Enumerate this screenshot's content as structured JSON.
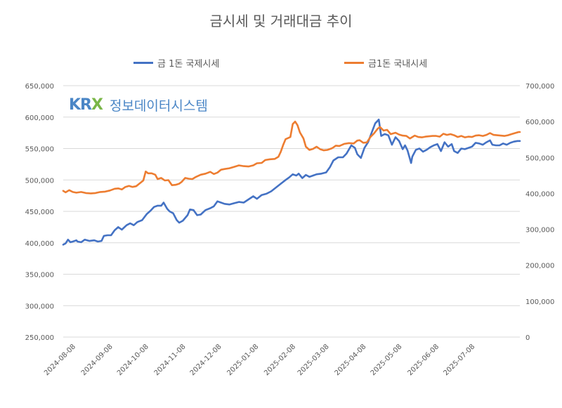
{
  "chart_data": {
    "type": "line",
    "title": "금시세 및 거래대금 추이",
    "watermark": {
      "logo": "KRX",
      "text": "정보데이터시스템",
      "logo_color": "#4a86c6",
      "accent_color": "#7ab648"
    },
    "left_axis": {
      "ylim": [
        250000,
        650000
      ],
      "ticks": [
        "250,000",
        "300,000",
        "350,000",
        "400,000",
        "450,000",
        "500,000",
        "550,000",
        "600,000",
        "650,000"
      ]
    },
    "right_axis": {
      "ylim": [
        0,
        700000
      ],
      "ticks": [
        "0",
        "100,000",
        "200,000",
        "300,000",
        "400,000",
        "500,000",
        "600,000",
        "700,000"
      ]
    },
    "x_axis": {
      "type": "date",
      "range": [
        "2024-08-01",
        "2025-08-18"
      ],
      "ticks": [
        "2024-08-08",
        "2024-09-08",
        "2024-10-08",
        "2024-11-08",
        "2024-12-08",
        "2025-01-08",
        "2025-02-08",
        "2025-03-08",
        "2025-04-08",
        "2025-05-08",
        "2025-06-08",
        "2025-07-08"
      ]
    },
    "gridlines": true,
    "legend_position": "top",
    "series": [
      {
        "name": "금 1돈 국제시세",
        "axis": "left",
        "color": "#4472c4",
        "points": [
          [
            "2024-08-01",
            397000
          ],
          [
            "2024-08-03",
            399000
          ],
          [
            "2024-08-05",
            405000
          ],
          [
            "2024-08-07",
            401000
          ],
          [
            "2024-08-09",
            402000
          ],
          [
            "2024-08-12",
            404000
          ],
          [
            "2024-08-13",
            402000
          ],
          [
            "2024-08-16",
            401000
          ],
          [
            "2024-08-19",
            405000
          ],
          [
            "2024-08-23",
            403000
          ],
          [
            "2024-08-27",
            404000
          ],
          [
            "2024-08-30",
            402000
          ],
          [
            "2024-09-02",
            403000
          ],
          [
            "2024-09-04",
            411000
          ],
          [
            "2024-09-07",
            412000
          ],
          [
            "2024-09-10",
            412000
          ],
          [
            "2024-09-13",
            420000
          ],
          [
            "2024-09-16",
            425000
          ],
          [
            "2024-09-19",
            421000
          ],
          [
            "2024-09-23",
            428000
          ],
          [
            "2024-09-26",
            431000
          ],
          [
            "2024-09-29",
            428000
          ],
          [
            "2024-10-02",
            433000
          ],
          [
            "2024-10-06",
            436000
          ],
          [
            "2024-10-10",
            446000
          ],
          [
            "2024-10-13",
            451000
          ],
          [
            "2024-10-16",
            457000
          ],
          [
            "2024-10-19",
            459000
          ],
          [
            "2024-10-22",
            459000
          ],
          [
            "2024-10-24",
            464000
          ],
          [
            "2024-10-27",
            454000
          ],
          [
            "2024-10-29",
            450000
          ],
          [
            "2024-11-01",
            447000
          ],
          [
            "2024-11-04",
            436000
          ],
          [
            "2024-11-06",
            432000
          ],
          [
            "2024-11-09",
            435000
          ],
          [
            "2024-11-13",
            444000
          ],
          [
            "2024-11-15",
            453000
          ],
          [
            "2024-11-18",
            452000
          ],
          [
            "2024-11-21",
            444000
          ],
          [
            "2024-11-24",
            445000
          ],
          [
            "2024-11-28",
            452000
          ],
          [
            "2024-12-02",
            455000
          ],
          [
            "2024-12-05",
            458000
          ],
          [
            "2024-12-08",
            466000
          ],
          [
            "2024-12-11",
            464000
          ],
          [
            "2024-12-14",
            462000
          ],
          [
            "2024-12-18",
            461000
          ],
          [
            "2024-12-22",
            463000
          ],
          [
            "2024-12-26",
            465000
          ],
          [
            "2024-12-30",
            464000
          ],
          [
            "2025-01-03",
            469000
          ],
          [
            "2025-01-07",
            474000
          ],
          [
            "2025-01-10",
            470000
          ],
          [
            "2025-01-14",
            476000
          ],
          [
            "2025-01-18",
            478000
          ],
          [
            "2025-01-22",
            482000
          ],
          [
            "2025-01-26",
            488000
          ],
          [
            "2025-01-30",
            494000
          ],
          [
            "2025-02-03",
            500000
          ],
          [
            "2025-02-06",
            504000
          ],
          [
            "2025-02-09",
            509000
          ],
          [
            "2025-02-12",
            507000
          ],
          [
            "2025-02-14",
            510000
          ],
          [
            "2025-02-17",
            503000
          ],
          [
            "2025-02-20",
            508000
          ],
          [
            "2025-02-23",
            505000
          ],
          [
            "2025-02-26",
            507000
          ],
          [
            "2025-03-01",
            509000
          ],
          [
            "2025-03-05",
            510000
          ],
          [
            "2025-03-09",
            512000
          ],
          [
            "2025-03-12",
            520000
          ],
          [
            "2025-03-15",
            531000
          ],
          [
            "2025-03-19",
            536000
          ],
          [
            "2025-03-23",
            536000
          ],
          [
            "2025-03-26",
            542000
          ],
          [
            "2025-03-30",
            555000
          ],
          [
            "2025-04-02",
            551000
          ],
          [
            "2025-04-04",
            541000
          ],
          [
            "2025-04-07",
            535000
          ],
          [
            "2025-04-10",
            551000
          ],
          [
            "2025-04-13",
            560000
          ],
          [
            "2025-04-16",
            575000
          ],
          [
            "2025-04-19",
            590000
          ],
          [
            "2025-04-22",
            596000
          ],
          [
            "2025-04-24",
            570000
          ],
          [
            "2025-04-27",
            573000
          ],
          [
            "2025-04-30",
            571000
          ],
          [
            "2025-05-03",
            556000
          ],
          [
            "2025-05-06",
            568000
          ],
          [
            "2025-05-09",
            562000
          ],
          [
            "2025-05-12",
            549000
          ],
          [
            "2025-05-14",
            555000
          ],
          [
            "2025-05-16",
            547000
          ],
          [
            "2025-05-19",
            527000
          ],
          [
            "2025-05-20",
            537000
          ],
          [
            "2025-05-23",
            548000
          ],
          [
            "2025-05-26",
            550000
          ],
          [
            "2025-05-29",
            545000
          ],
          [
            "2025-06-01",
            548000
          ],
          [
            "2025-06-04",
            552000
          ],
          [
            "2025-06-07",
            555000
          ],
          [
            "2025-06-10",
            557000
          ],
          [
            "2025-06-13",
            546000
          ],
          [
            "2025-06-16",
            560000
          ],
          [
            "2025-06-19",
            553000
          ],
          [
            "2025-06-22",
            557000
          ],
          [
            "2025-06-24",
            546000
          ],
          [
            "2025-06-27",
            543000
          ],
          [
            "2025-06-30",
            550000
          ],
          [
            "2025-07-03",
            549000
          ],
          [
            "2025-07-06",
            551000
          ],
          [
            "2025-07-09",
            553000
          ],
          [
            "2025-07-12",
            559000
          ],
          [
            "2025-07-15",
            558000
          ],
          [
            "2025-07-18",
            556000
          ],
          [
            "2025-07-21",
            560000
          ],
          [
            "2025-07-24",
            563000
          ],
          [
            "2025-07-26",
            556000
          ],
          [
            "2025-07-29",
            555000
          ],
          [
            "2025-08-01",
            555000
          ],
          [
            "2025-08-04",
            558000
          ],
          [
            "2025-08-07",
            556000
          ],
          [
            "2025-08-10",
            559000
          ],
          [
            "2025-08-13",
            561000
          ],
          [
            "2025-08-16",
            562000
          ],
          [
            "2025-08-18",
            562000
          ]
        ]
      },
      {
        "name": "금1돈 국내시세",
        "axis": "right",
        "color": "#ed7d31",
        "points": [
          [
            "2024-08-01",
            407000
          ],
          [
            "2024-08-03",
            403000
          ],
          [
            "2024-08-06",
            409000
          ],
          [
            "2024-08-09",
            404000
          ],
          [
            "2024-08-12",
            402000
          ],
          [
            "2024-08-16",
            404000
          ],
          [
            "2024-08-20",
            401000
          ],
          [
            "2024-08-24",
            400000
          ],
          [
            "2024-08-28",
            401000
          ],
          [
            "2024-09-01",
            404000
          ],
          [
            "2024-09-05",
            405000
          ],
          [
            "2024-09-09",
            408000
          ],
          [
            "2024-09-13",
            413000
          ],
          [
            "2024-09-16",
            414000
          ],
          [
            "2024-09-19",
            411000
          ],
          [
            "2024-09-22",
            418000
          ],
          [
            "2024-09-25",
            421000
          ],
          [
            "2024-09-28",
            418000
          ],
          [
            "2024-10-01",
            420000
          ],
          [
            "2024-10-04",
            428000
          ],
          [
            "2024-10-07",
            436000
          ],
          [
            "2024-10-09",
            461000
          ],
          [
            "2024-10-11",
            456000
          ],
          [
            "2024-10-14",
            456000
          ],
          [
            "2024-10-17",
            452000
          ],
          [
            "2024-10-19",
            440000
          ],
          [
            "2024-10-22",
            443000
          ],
          [
            "2024-10-25",
            436000
          ],
          [
            "2024-10-28",
            437000
          ],
          [
            "2024-10-31",
            423000
          ],
          [
            "2024-11-03",
            424000
          ],
          [
            "2024-11-06",
            427000
          ],
          [
            "2024-11-08",
            432000
          ],
          [
            "2024-11-11",
            443000
          ],
          [
            "2024-11-14",
            441000
          ],
          [
            "2024-11-17",
            440000
          ],
          [
            "2024-11-20",
            446000
          ],
          [
            "2024-11-24",
            452000
          ],
          [
            "2024-11-28",
            455000
          ],
          [
            "2024-12-02",
            460000
          ],
          [
            "2024-12-05",
            454000
          ],
          [
            "2024-12-08",
            458000
          ],
          [
            "2024-12-11",
            466000
          ],
          [
            "2024-12-14",
            468000
          ],
          [
            "2024-12-18",
            470000
          ],
          [
            "2024-12-22",
            474000
          ],
          [
            "2024-12-26",
            478000
          ],
          [
            "2024-12-30",
            476000
          ],
          [
            "2025-01-03",
            475000
          ],
          [
            "2025-01-07",
            478000
          ],
          [
            "2025-01-10",
            484000
          ],
          [
            "2025-01-14",
            485000
          ],
          [
            "2025-01-17",
            493000
          ],
          [
            "2025-01-21",
            495000
          ],
          [
            "2025-01-25",
            496000
          ],
          [
            "2025-01-28",
            502000
          ],
          [
            "2025-01-30",
            516000
          ],
          [
            "2025-02-01",
            535000
          ],
          [
            "2025-02-03",
            551000
          ],
          [
            "2025-02-05",
            554000
          ],
          [
            "2025-02-07",
            557000
          ],
          [
            "2025-02-09",
            593000
          ],
          [
            "2025-02-11",
            600000
          ],
          [
            "2025-02-13",
            590000
          ],
          [
            "2025-02-15",
            570000
          ],
          [
            "2025-02-18",
            553000
          ],
          [
            "2025-02-20",
            530000
          ],
          [
            "2025-02-23",
            521000
          ],
          [
            "2025-02-26",
            524000
          ],
          [
            "2025-03-01",
            530000
          ],
          [
            "2025-03-04",
            523000
          ],
          [
            "2025-03-07",
            520000
          ],
          [
            "2025-03-10",
            521000
          ],
          [
            "2025-03-14",
            526000
          ],
          [
            "2025-03-17",
            533000
          ],
          [
            "2025-03-20",
            532000
          ],
          [
            "2025-03-24",
            538000
          ],
          [
            "2025-03-28",
            540000
          ],
          [
            "2025-04-01",
            539000
          ],
          [
            "2025-04-04",
            547000
          ],
          [
            "2025-04-06",
            548000
          ],
          [
            "2025-04-09",
            541000
          ],
          [
            "2025-04-12",
            542000
          ],
          [
            "2025-04-15",
            557000
          ],
          [
            "2025-04-18",
            567000
          ],
          [
            "2025-04-21",
            580000
          ],
          [
            "2025-04-23",
            585000
          ],
          [
            "2025-04-26",
            575000
          ],
          [
            "2025-04-29",
            577000
          ],
          [
            "2025-05-02",
            565000
          ],
          [
            "2025-05-06",
            569000
          ],
          [
            "2025-05-09",
            564000
          ],
          [
            "2025-05-12",
            561000
          ],
          [
            "2025-05-15",
            560000
          ],
          [
            "2025-05-18",
            553000
          ],
          [
            "2025-05-22",
            561000
          ],
          [
            "2025-05-25",
            557000
          ],
          [
            "2025-05-28",
            556000
          ],
          [
            "2025-05-31",
            558000
          ],
          [
            "2025-06-03",
            559000
          ],
          [
            "2025-06-06",
            560000
          ],
          [
            "2025-06-09",
            560000
          ],
          [
            "2025-06-12",
            558000
          ],
          [
            "2025-06-15",
            566000
          ],
          [
            "2025-06-18",
            563000
          ],
          [
            "2025-06-21",
            565000
          ],
          [
            "2025-06-24",
            562000
          ],
          [
            "2025-06-27",
            557000
          ],
          [
            "2025-06-30",
            560000
          ],
          [
            "2025-07-03",
            556000
          ],
          [
            "2025-07-06",
            558000
          ],
          [
            "2025-07-09",
            557000
          ],
          [
            "2025-07-12",
            561000
          ],
          [
            "2025-07-15",
            562000
          ],
          [
            "2025-07-18",
            560000
          ],
          [
            "2025-07-21",
            563000
          ],
          [
            "2025-07-24",
            568000
          ],
          [
            "2025-07-27",
            563000
          ],
          [
            "2025-07-30",
            562000
          ],
          [
            "2025-08-02",
            561000
          ],
          [
            "2025-08-05",
            560000
          ],
          [
            "2025-08-08",
            562000
          ],
          [
            "2025-08-11",
            565000
          ],
          [
            "2025-08-14",
            568000
          ],
          [
            "2025-08-17",
            571000
          ],
          [
            "2025-08-18",
            571000
          ]
        ]
      }
    ]
  }
}
